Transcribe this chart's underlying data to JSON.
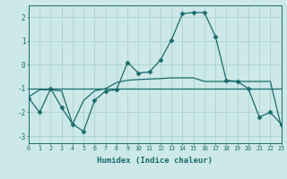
{
  "title": "",
  "xlabel": "Humidex (Indice chaleur)",
  "ylabel": "",
  "bg_color": "#cce8e8",
  "line_color": "#1a6b6b",
  "line1": {
    "x": [
      0,
      1,
      2,
      3,
      4,
      5,
      6,
      7,
      8,
      9,
      10,
      11,
      12,
      13,
      14,
      15,
      16,
      17,
      18,
      19,
      20,
      21,
      22,
      23
    ],
    "y": [
      -1.4,
      -2.0,
      -1.0,
      -1.8,
      -2.5,
      -2.8,
      -1.5,
      -1.1,
      -1.05,
      0.1,
      -0.35,
      -0.3,
      0.2,
      1.05,
      2.15,
      2.2,
      2.2,
      1.2,
      -0.65,
      -0.7,
      -1.0,
      -2.2,
      -2.0,
      -2.5
    ]
  },
  "line2": {
    "x": [
      0,
      1,
      2,
      3,
      4,
      5,
      6,
      7,
      8,
      9,
      10,
      11,
      12,
      13,
      14,
      15,
      16,
      17,
      18,
      19,
      20,
      21,
      22,
      23
    ],
    "y": [
      -1.0,
      -1.0,
      -1.0,
      -1.0,
      -1.0,
      -1.0,
      -1.0,
      -1.0,
      -1.0,
      -1.0,
      -1.0,
      -1.0,
      -1.0,
      -1.0,
      -1.0,
      -1.0,
      -1.0,
      -1.0,
      -1.0,
      -1.0,
      -1.0,
      -1.0,
      -1.0,
      -1.0
    ]
  },
  "line3": {
    "x": [
      0,
      1,
      2,
      3,
      4,
      5,
      6,
      7,
      8,
      9,
      10,
      11,
      12,
      13,
      14,
      15,
      16,
      17,
      18,
      19,
      20,
      21,
      22,
      23
    ],
    "y": [
      -1.35,
      -1.05,
      -1.05,
      -1.1,
      -2.5,
      -1.5,
      -1.1,
      -1.0,
      -0.75,
      -0.65,
      -0.62,
      -0.6,
      -0.58,
      -0.55,
      -0.55,
      -0.55,
      -0.7,
      -0.7,
      -0.7,
      -0.7,
      -0.7,
      -0.7,
      -0.7,
      -2.6
    ]
  },
  "xlim": [
    0,
    23
  ],
  "ylim": [
    -3.3,
    2.5
  ],
  "yticks": [
    -3,
    -2,
    -1,
    0,
    1,
    2
  ],
  "xticks": [
    0,
    1,
    2,
    3,
    4,
    5,
    6,
    7,
    8,
    9,
    10,
    11,
    12,
    13,
    14,
    15,
    16,
    17,
    18,
    19,
    20,
    21,
    22,
    23
  ],
  "grid_color": "#aacccc",
  "marker": "D",
  "markersize": 2.5,
  "lw": 0.9
}
